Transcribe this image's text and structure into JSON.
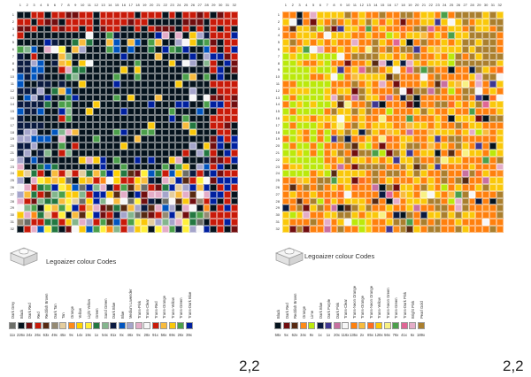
{
  "palette": {
    "1": "#f2f2f2",
    "5": "#e4cd9e",
    "9": "#aeeff0",
    "11": "#05131d",
    "19": "#f5c56e",
    "20": "#e8dcf6",
    "21": "#c91a09",
    "23": "#0055bf",
    "26": "#05131d",
    "28": "#237841",
    "29": "#e4adc8",
    "37": "#4b9f4a",
    "40": "#e9e9ef",
    "42": "#aedef0",
    "43": "#0020a0",
    "48": "#84b68d",
    "52": "#a5a5cb",
    "56": "#d0d0e0",
    "58": "#fe8a18",
    "63": "#720e0f",
    "68": "#f8bb3d",
    "69": "#ff9ecd",
    "70": "#582a12",
    "71": "#a0a5a9",
    "72": "#6c6e68",
    "73": "#1e5aa8",
    "75": "#05131d",
    "76": "#c5e8e0",
    "79": "#f7f7f7",
    "81": "#c91a09",
    "82": "#d09168",
    "84": "#ffd200",
    "85": "#3f3691",
    "86": "#958a73",
    "90": "#0a1a40",
    "110": "#0c6ca3",
    "111": "#c8e633",
    "118": "#ff8014",
    "119": "#bbe90b",
    "120": "#55a5af",
    "191": "#fac80a",
    "226": "#fff03a",
    "294": "#bbe90b",
    "308": "#352100",
    "321": "#55a5af",
    "322": "#a0bcac",
    "324": "#d09168",
    "325": "#bcb4a5",
    "330": "#885e4e"
  },
  "sheets": [
    {
      "id": "sheet-left",
      "cols": 33,
      "rows": 33,
      "col_numbers": [
        "1",
        "2",
        "3",
        "4",
        "5",
        "6",
        "7",
        "8",
        "9",
        "10",
        "11",
        "12",
        "13",
        "14",
        "15",
        "16",
        "17",
        "18",
        "19",
        "20",
        "21",
        "22",
        "23",
        "24",
        "25",
        "26",
        "27",
        "28",
        "29",
        "30",
        "31",
        "32"
      ],
      "row_numbers": [
        "1",
        "2",
        "3",
        "4",
        "5",
        "6",
        "7",
        "8",
        "9",
        "10",
        "11",
        "12",
        "13",
        "14",
        "15",
        "16",
        "17",
        "18",
        "19",
        "20",
        "21",
        "22",
        "23",
        "24",
        "25",
        "26",
        "27",
        "28",
        "29",
        "30",
        "31",
        "32"
      ],
      "codes_title": "Legoaizer colour Codes",
      "legend": [
        {
          "label": "Dark Grey",
          "hex": "#6c6e68",
          "num": "",
          "count": "11x"
        },
        {
          "label": "Black",
          "hex": "#05131d",
          "num": "",
          "count": "226x"
        },
        {
          "label": "Dark Red",
          "hex": "#720e0f",
          "num": "",
          "count": "24x"
        },
        {
          "label": "Red",
          "hex": "#c91a09",
          "num": "",
          "count": "26x"
        },
        {
          "label": "Reddish Brown",
          "hex": "#582a12",
          "num": "",
          "count": "63x"
        },
        {
          "label": "Dark Tan",
          "hex": "#958a73",
          "num": "",
          "count": "49x"
        },
        {
          "label": "Tan",
          "hex": "#e4cd9e",
          "num": "",
          "count": "45x"
        },
        {
          "label": "Orange",
          "hex": "#fe8a18",
          "num": "",
          "count": "9x"
        },
        {
          "label": "Yellow",
          "hex": "#ffd200",
          "num": "",
          "count": "14x"
        },
        {
          "label": "Light Yellow",
          "hex": "#fff03a",
          "num": "",
          "count": "19x"
        },
        {
          "label": "Green",
          "hex": "#237841",
          "num": "",
          "count": "1x"
        },
        {
          "label": "Sand Green",
          "hex": "#84b68d",
          "num": "",
          "count": "54x"
        },
        {
          "label": "Dark Blue",
          "hex": "#0a1a40",
          "num": "",
          "count": "81x"
        },
        {
          "label": "Blue",
          "hex": "#0055bf",
          "num": "",
          "count": "8x"
        },
        {
          "label": "Medium Lavender",
          "hex": "#a5a5cb",
          "num": "",
          "count": "46x"
        },
        {
          "label": "Trans-Pink",
          "hex": "#e4adc8",
          "num": "",
          "count": "9x"
        },
        {
          "label": "Trans-Clear",
          "hex": "#f7f7f7",
          "num": "",
          "count": "28x"
        },
        {
          "label": "Trans-Red",
          "hex": "#c91a09",
          "num": "",
          "count": "91x"
        },
        {
          "label": "Trans-Orange",
          "hex": "#f8bb3d",
          "num": "",
          "count": "56x"
        },
        {
          "label": "Trans-Yellow",
          "hex": "#fac80a",
          "num": "",
          "count": "69x"
        },
        {
          "label": "Trans-Green",
          "hex": "#4b9f4a",
          "num": "",
          "count": "26x"
        },
        {
          "label": "Trans-Dark Blue",
          "hex": "#0020a0",
          "num": "",
          "count": "39x"
        }
      ],
      "page_id": "2,2"
    },
    {
      "id": "sheet-right",
      "cols": 33,
      "rows": 33,
      "col_numbers": [
        "1",
        "2",
        "3",
        "4",
        "5",
        "6",
        "7",
        "8",
        "9",
        "10",
        "11",
        "12",
        "13",
        "14",
        "15",
        "16",
        "17",
        "18",
        "19",
        "20",
        "21",
        "22",
        "23",
        "24",
        "25",
        "26",
        "27",
        "28",
        "29",
        "30",
        "31",
        "32"
      ],
      "row_numbers": [
        "1",
        "2",
        "3",
        "4",
        "5",
        "6",
        "7",
        "8",
        "9",
        "10",
        "11",
        "12",
        "13",
        "14",
        "15",
        "16",
        "17",
        "18",
        "19",
        "20",
        "21",
        "22",
        "23",
        "24",
        "25",
        "26",
        "27",
        "28",
        "29",
        "30",
        "31",
        "32"
      ],
      "codes_title": "Legoaizer colour Codes",
      "legend": [
        {
          "label": "Black",
          "hex": "#05131d",
          "num": "",
          "count": "58x"
        },
        {
          "label": "Dark Red",
          "hex": "#720e0f",
          "num": "",
          "count": "5x"
        },
        {
          "label": "Reddish Brown",
          "hex": "#582a12",
          "num": "",
          "count": "62x"
        },
        {
          "label": "Orange",
          "hex": "#fe8a18",
          "num": "",
          "count": "34x"
        },
        {
          "label": "Lime",
          "hex": "#bbe90b",
          "num": "",
          "count": "9x"
        },
        {
          "label": "Dark Blue",
          "hex": "#0a1a40",
          "num": "",
          "count": "1x"
        },
        {
          "label": "Dark Purple",
          "hex": "#3f3691",
          "num": "",
          "count": "1x"
        },
        {
          "label": "Dark Pink",
          "hex": "#c870a0",
          "num": "",
          "count": "20x"
        },
        {
          "label": "Trans-Clear",
          "hex": "#f7f7f7",
          "num": "",
          "count": "116x"
        },
        {
          "label": "Trans-Neon Orange",
          "hex": "#ff800d",
          "num": "",
          "count": "135x"
        },
        {
          "label": "Trans-Orange",
          "hex": "#f8bb3d",
          "num": "",
          "count": "2x"
        },
        {
          "label": "Trans-Neon Orange",
          "hex": "#ff6d1f",
          "num": "",
          "count": "85x"
        },
        {
          "label": "Trans-Yellow",
          "hex": "#fac80a",
          "num": "",
          "count": "128x"
        },
        {
          "label": "Trans-Neon Green",
          "hex": "#f8f184",
          "num": "",
          "count": "56x"
        },
        {
          "label": "Trans-Green",
          "hex": "#4b9f4a",
          "num": "",
          "count": "76x"
        },
        {
          "label": "Trans-Dark Pink",
          "hex": "#df6695",
          "num": "",
          "count": "41x"
        },
        {
          "label": "Bright Pink",
          "hex": "#e4adc8",
          "num": "",
          "count": "6x"
        },
        {
          "label": "Pearl Gold",
          "hex": "#aa7f2e",
          "num": "",
          "count": "189x"
        }
      ],
      "page_id": "2,2"
    }
  ]
}
